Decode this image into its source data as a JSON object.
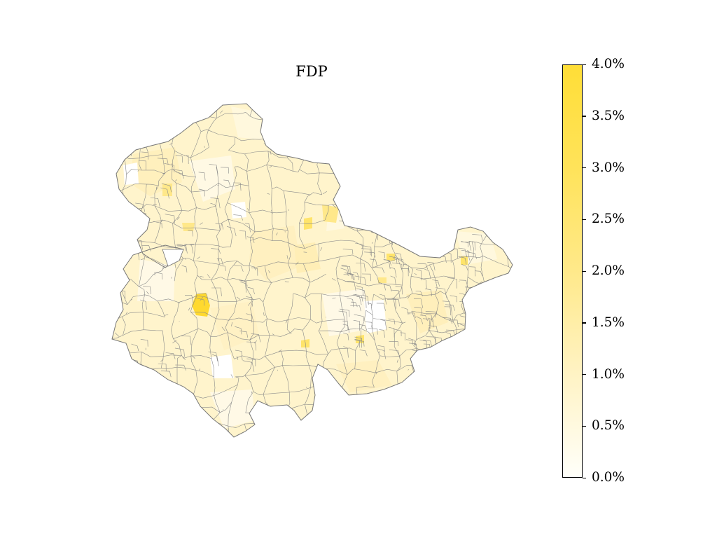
{
  "title": "FDP",
  "colorbar": {
    "min": 0.0,
    "max": 4.0,
    "colors": [
      "#fffffa",
      "#fff3c4",
      "#ffe98a",
      "#ffe35a",
      "#ffde37"
    ],
    "ticks": [
      "0.0%",
      "0.5%",
      "1.0%",
      "1.5%",
      "2.0%",
      "2.5%",
      "3.0%",
      "3.5%",
      "4.0%"
    ]
  },
  "map": {
    "region_fill": "#fff4cc",
    "border_color": "#777777",
    "highlight_color": "#ffd92f",
    "background": "#ffffff"
  }
}
